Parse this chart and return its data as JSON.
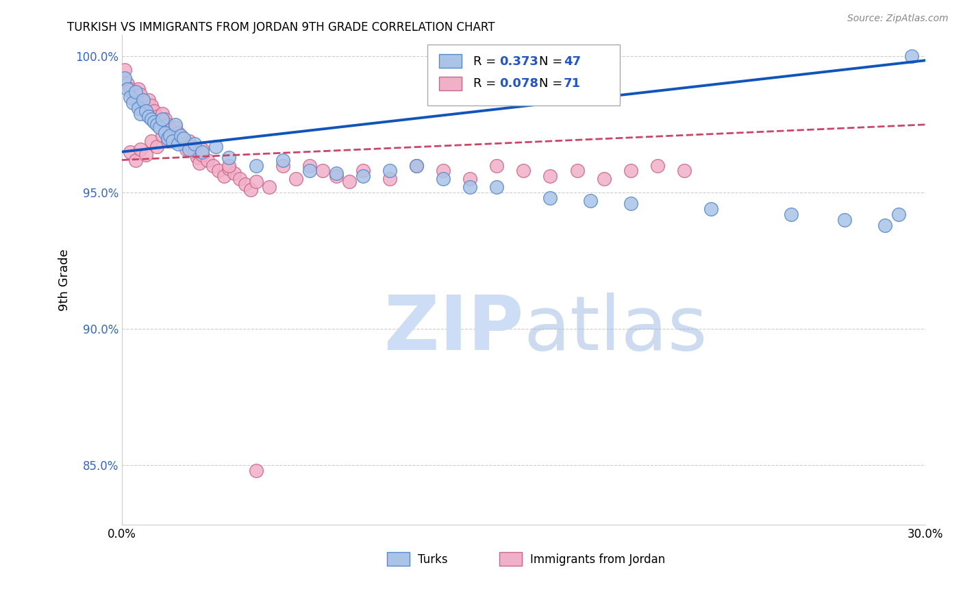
{
  "title": "TURKISH VS IMMIGRANTS FROM JORDAN 9TH GRADE CORRELATION CHART",
  "source": "Source: ZipAtlas.com",
  "ylabel": "9th Grade",
  "xlim": [
    0.0,
    0.3
  ],
  "ylim": [
    0.828,
    1.008
  ],
  "xticks": [
    0.0,
    0.05,
    0.1,
    0.15,
    0.2,
    0.25,
    0.3
  ],
  "xticklabels": [
    "0.0%",
    "",
    "",
    "",
    "",
    "",
    "30.0%"
  ],
  "yticks": [
    0.85,
    0.9,
    0.95,
    1.0
  ],
  "yticklabels": [
    "85.0%",
    "90.0%",
    "95.0%",
    "100.0%"
  ],
  "blue_R": 0.373,
  "blue_N": 47,
  "pink_R": 0.078,
  "pink_N": 71,
  "blue_color": "#aac4e8",
  "blue_edge": "#5588cc",
  "pink_color": "#f0b0c8",
  "pink_edge": "#cc6688",
  "blue_line_color": "#1155bb",
  "pink_line_color": "#cc4466",
  "grid_color": "#cccccc",
  "blue_scatter_x": [
    0.001,
    0.002,
    0.003,
    0.004,
    0.005,
    0.006,
    0.007,
    0.008,
    0.009,
    0.01,
    0.011,
    0.012,
    0.013,
    0.014,
    0.015,
    0.016,
    0.017,
    0.018,
    0.019,
    0.02,
    0.021,
    0.022,
    0.023,
    0.025,
    0.027,
    0.03,
    0.035,
    0.04,
    0.05,
    0.06,
    0.07,
    0.08,
    0.09,
    0.1,
    0.11,
    0.12,
    0.14,
    0.16,
    0.19,
    0.22,
    0.25,
    0.27,
    0.285,
    0.295,
    0.13,
    0.175,
    0.29
  ],
  "blue_scatter_y": [
    0.992,
    0.988,
    0.985,
    0.983,
    0.987,
    0.981,
    0.979,
    0.984,
    0.98,
    0.978,
    0.977,
    0.976,
    0.975,
    0.974,
    0.977,
    0.972,
    0.97,
    0.971,
    0.969,
    0.975,
    0.968,
    0.971,
    0.97,
    0.966,
    0.968,
    0.965,
    0.967,
    0.963,
    0.96,
    0.962,
    0.958,
    0.957,
    0.956,
    0.958,
    0.96,
    0.955,
    0.952,
    0.948,
    0.946,
    0.944,
    0.942,
    0.94,
    0.938,
    1.0,
    0.952,
    0.947,
    0.942
  ],
  "pink_scatter_x": [
    0.001,
    0.002,
    0.003,
    0.004,
    0.005,
    0.006,
    0.007,
    0.008,
    0.009,
    0.01,
    0.011,
    0.012,
    0.013,
    0.014,
    0.015,
    0.016,
    0.017,
    0.018,
    0.019,
    0.02,
    0.021,
    0.022,
    0.023,
    0.024,
    0.025,
    0.026,
    0.027,
    0.028,
    0.029,
    0.03,
    0.032,
    0.034,
    0.036,
    0.038,
    0.04,
    0.042,
    0.044,
    0.046,
    0.048,
    0.05,
    0.055,
    0.06,
    0.065,
    0.07,
    0.075,
    0.08,
    0.085,
    0.09,
    0.1,
    0.11,
    0.12,
    0.13,
    0.14,
    0.15,
    0.16,
    0.17,
    0.18,
    0.19,
    0.2,
    0.21,
    0.003,
    0.005,
    0.007,
    0.009,
    0.011,
    0.013,
    0.015,
    0.017,
    0.03,
    0.04,
    0.05
  ],
  "pink_scatter_y": [
    0.995,
    0.99,
    0.988,
    0.986,
    0.984,
    0.988,
    0.986,
    0.983,
    0.981,
    0.984,
    0.982,
    0.98,
    0.978,
    0.976,
    0.979,
    0.977,
    0.975,
    0.973,
    0.971,
    0.974,
    0.972,
    0.97,
    0.968,
    0.966,
    0.969,
    0.967,
    0.965,
    0.963,
    0.961,
    0.964,
    0.962,
    0.96,
    0.958,
    0.956,
    0.959,
    0.957,
    0.955,
    0.953,
    0.951,
    0.954,
    0.952,
    0.96,
    0.955,
    0.96,
    0.958,
    0.956,
    0.954,
    0.958,
    0.955,
    0.96,
    0.958,
    0.955,
    0.96,
    0.958,
    0.956,
    0.958,
    0.955,
    0.958,
    0.96,
    0.958,
    0.965,
    0.962,
    0.966,
    0.964,
    0.969,
    0.967,
    0.971,
    0.969,
    0.966,
    0.96,
    0.848
  ]
}
